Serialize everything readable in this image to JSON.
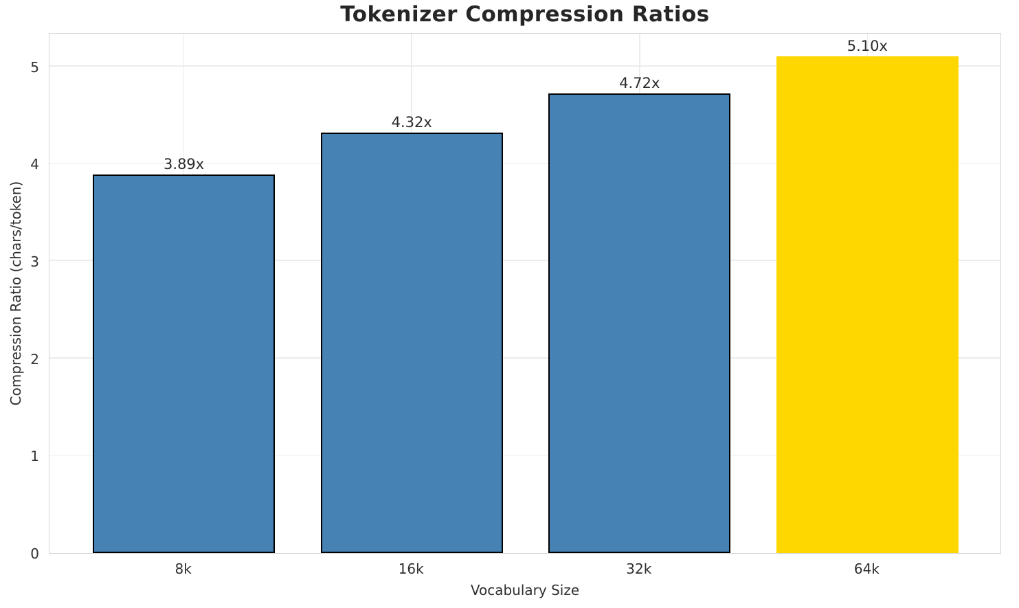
{
  "chart_data": {
    "type": "bar",
    "title": "Tokenizer Compression Ratios",
    "xlabel": "Vocabulary Size",
    "ylabel": "Compression Ratio (chars/token)",
    "categories": [
      "8k",
      "16k",
      "32k",
      "64k"
    ],
    "values": [
      3.89,
      4.32,
      4.72,
      5.1
    ],
    "bar_labels": [
      "3.89x",
      "4.32x",
      "4.72x",
      "5.10x"
    ],
    "bar_colors": [
      "#4682B4",
      "#4682B4",
      "#4682B4",
      "#FFD700"
    ],
    "bar_edge_colors": [
      "#000000",
      "#000000",
      "#000000",
      "none"
    ],
    "highlight_index": 3,
    "yticks": [
      0,
      1,
      2,
      3,
      4,
      5
    ],
    "ylim": [
      0,
      5.35
    ],
    "xlim": [
      -0.59,
      3.59
    ],
    "bar_width": 0.8,
    "grid": true,
    "legend_position": "none",
    "colors": {
      "grid": "#ececec",
      "spine": "#d4d4d4",
      "title_text": "#262626",
      "tick_text": "#303030",
      "bar_label_text": "#2b2b2b",
      "background": "#ffffff"
    }
  }
}
